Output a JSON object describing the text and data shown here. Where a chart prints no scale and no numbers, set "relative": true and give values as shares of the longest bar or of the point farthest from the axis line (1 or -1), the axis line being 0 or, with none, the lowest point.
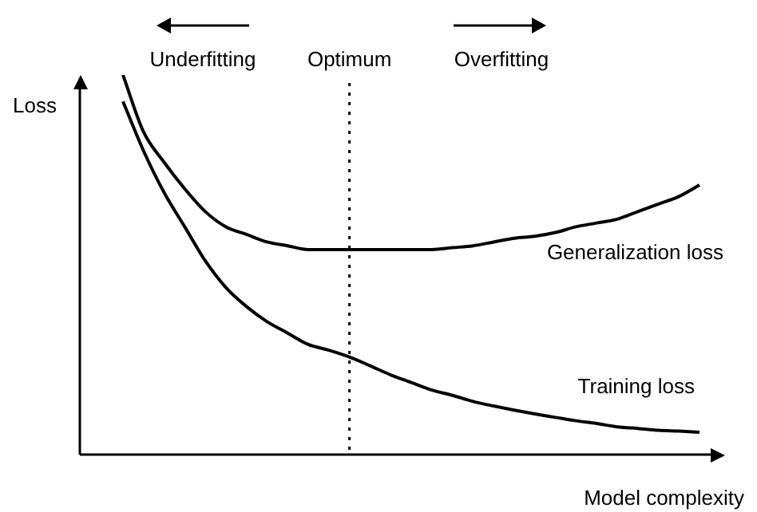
{
  "chart_data": {
    "type": "line",
    "relative": true,
    "xlabel": "Model complexity",
    "ylabel": "Loss",
    "legend": false,
    "marker": "none",
    "categories": [
      null,
      null,
      null,
      null,
      null,
      null,
      null,
      null,
      null,
      null,
      null,
      null,
      null,
      null,
      null,
      null,
      null,
      null,
      null,
      null,
      null,
      null,
      null,
      null,
      null,
      null,
      null,
      null,
      null
    ],
    "series": [
      {
        "name": "Generalization loss",
        "color": "#000000",
        "values": [
          1.0,
          0.85,
          0.77,
          0.7,
          0.64,
          0.6,
          0.58,
          0.56,
          0.55,
          0.54,
          0.54,
          0.54,
          0.54,
          0.54,
          0.54,
          0.54,
          0.545,
          0.55,
          0.56,
          0.57,
          0.575,
          0.585,
          0.6,
          0.61,
          0.62,
          0.64,
          0.66,
          0.68,
          0.71
        ]
      },
      {
        "name": "Training loss",
        "color": "#000000",
        "values": [
          0.93,
          0.8,
          0.69,
          0.6,
          0.51,
          0.44,
          0.39,
          0.35,
          0.32,
          0.29,
          0.275,
          0.257,
          0.234,
          0.21,
          0.19,
          0.17,
          0.156,
          0.14,
          0.128,
          0.117,
          0.107,
          0.098,
          0.089,
          0.082,
          0.073,
          0.069,
          0.064,
          0.062,
          0.059
        ]
      }
    ],
    "annotations": [
      "Underfitting",
      "Optimum",
      "Overfitting"
    ]
  }
}
